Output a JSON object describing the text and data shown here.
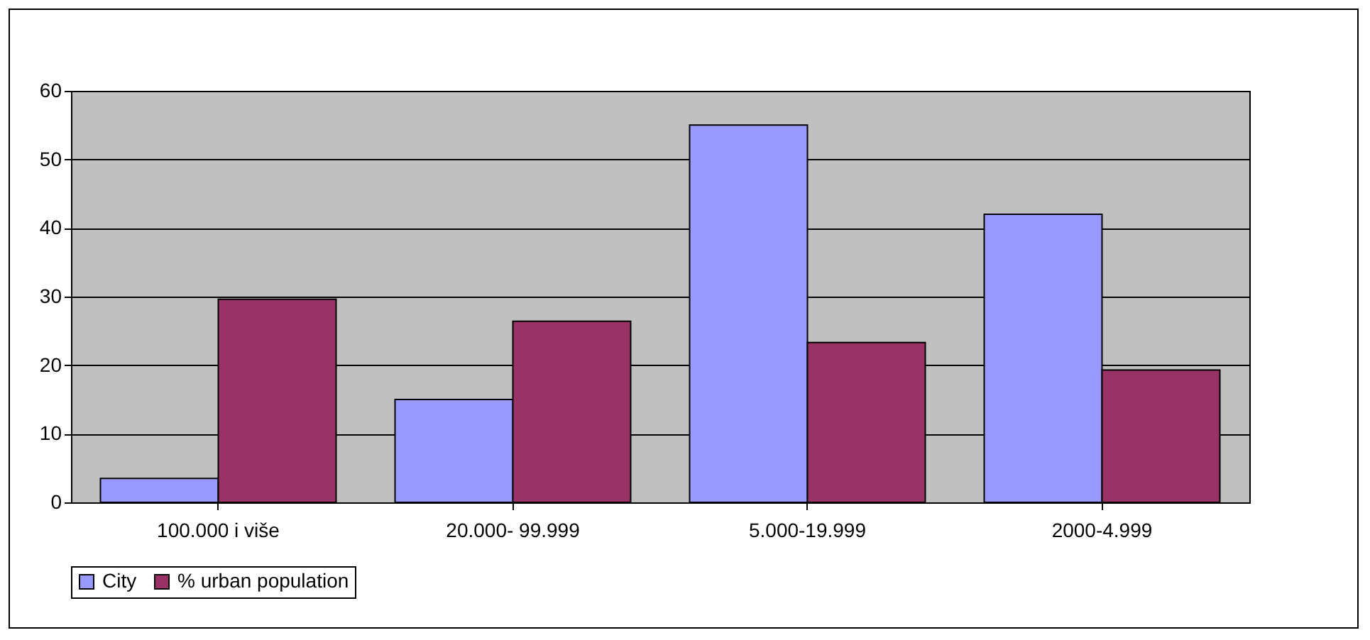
{
  "chart_data": {
    "type": "bar",
    "categories": [
      "100.000 i više",
      "20.000- 99.999",
      "5.000-19.999",
      "2000-4.999"
    ],
    "series": [
      {
        "name": "City",
        "color": "#9999ff",
        "values": [
          3.5,
          15,
          55,
          42
        ]
      },
      {
        "name": "% urban population",
        "color": "#993366",
        "values": [
          29.6,
          26.4,
          23.3,
          19.3
        ]
      }
    ],
    "ylim": [
      0,
      60
    ],
    "yticks": [
      0,
      10,
      20,
      30,
      40,
      50,
      60
    ],
    "grid": "y",
    "legend": "bottom"
  }
}
